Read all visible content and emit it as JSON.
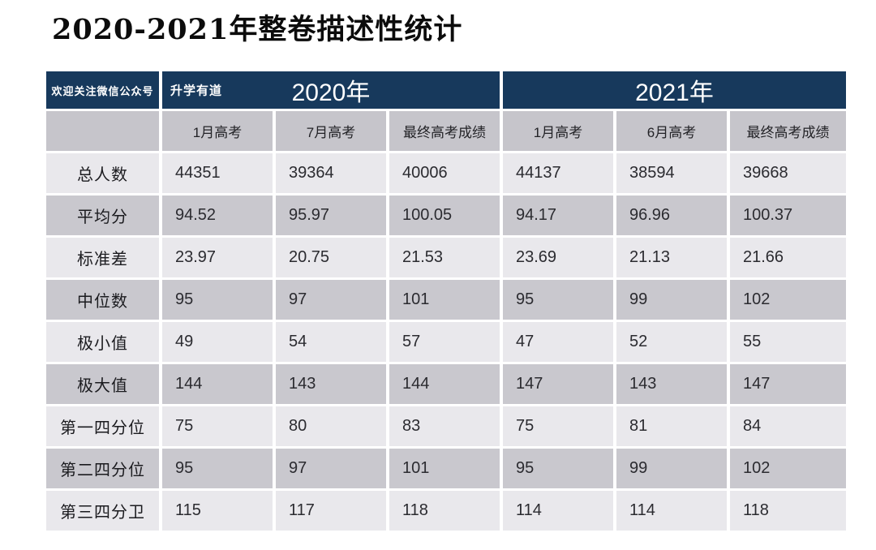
{
  "chart_data": {
    "type": "table",
    "title": "2020-2021年整卷描述性统计",
    "corner_note": "欢迎关注微信公众号",
    "brand": "升学有道",
    "column_groups": [
      {
        "label": "2020年",
        "columns": [
          "1月高考",
          "7月高考",
          "最终高考成绩"
        ]
      },
      {
        "label": "2021年",
        "columns": [
          "1月高考",
          "6月高考",
          "最终高考成绩"
        ]
      }
    ],
    "rows": [
      {
        "label": "总人数",
        "values": [
          44351,
          39364,
          40006,
          44137,
          38594,
          39668
        ]
      },
      {
        "label": "平均分",
        "values": [
          94.52,
          95.97,
          100.05,
          94.17,
          96.96,
          100.37
        ]
      },
      {
        "label": "标准差",
        "values": [
          23.97,
          20.75,
          21.53,
          23.69,
          21.13,
          21.66
        ]
      },
      {
        "label": "中位数",
        "values": [
          95,
          97,
          101,
          95,
          99,
          102
        ]
      },
      {
        "label": "极小值",
        "values": [
          49,
          54,
          57,
          47,
          52,
          55
        ]
      },
      {
        "label": "极大值",
        "values": [
          144,
          143,
          144,
          147,
          143,
          147
        ]
      },
      {
        "label": "第一四分位",
        "values": [
          75,
          80,
          83,
          75,
          81,
          84
        ]
      },
      {
        "label": "第二四分位",
        "values": [
          95,
          97,
          101,
          95,
          99,
          102
        ]
      },
      {
        "label": "第三四分卫",
        "values": [
          115,
          117,
          118,
          114,
          114,
          118
        ]
      }
    ],
    "layout_hints": {
      "grid": "banded-rows",
      "legend_position": "none"
    }
  },
  "colors": {
    "header_navy": "#17395C",
    "subheader_gray": "#C6C5CB",
    "row_light": "#E9E8EC",
    "row_dark": "#C9C8CE",
    "page_background": "#FFFFFF",
    "header_text": "#FFFFFF",
    "cell_text": "#2B2B30",
    "title_text": "#0C0C0C"
  }
}
